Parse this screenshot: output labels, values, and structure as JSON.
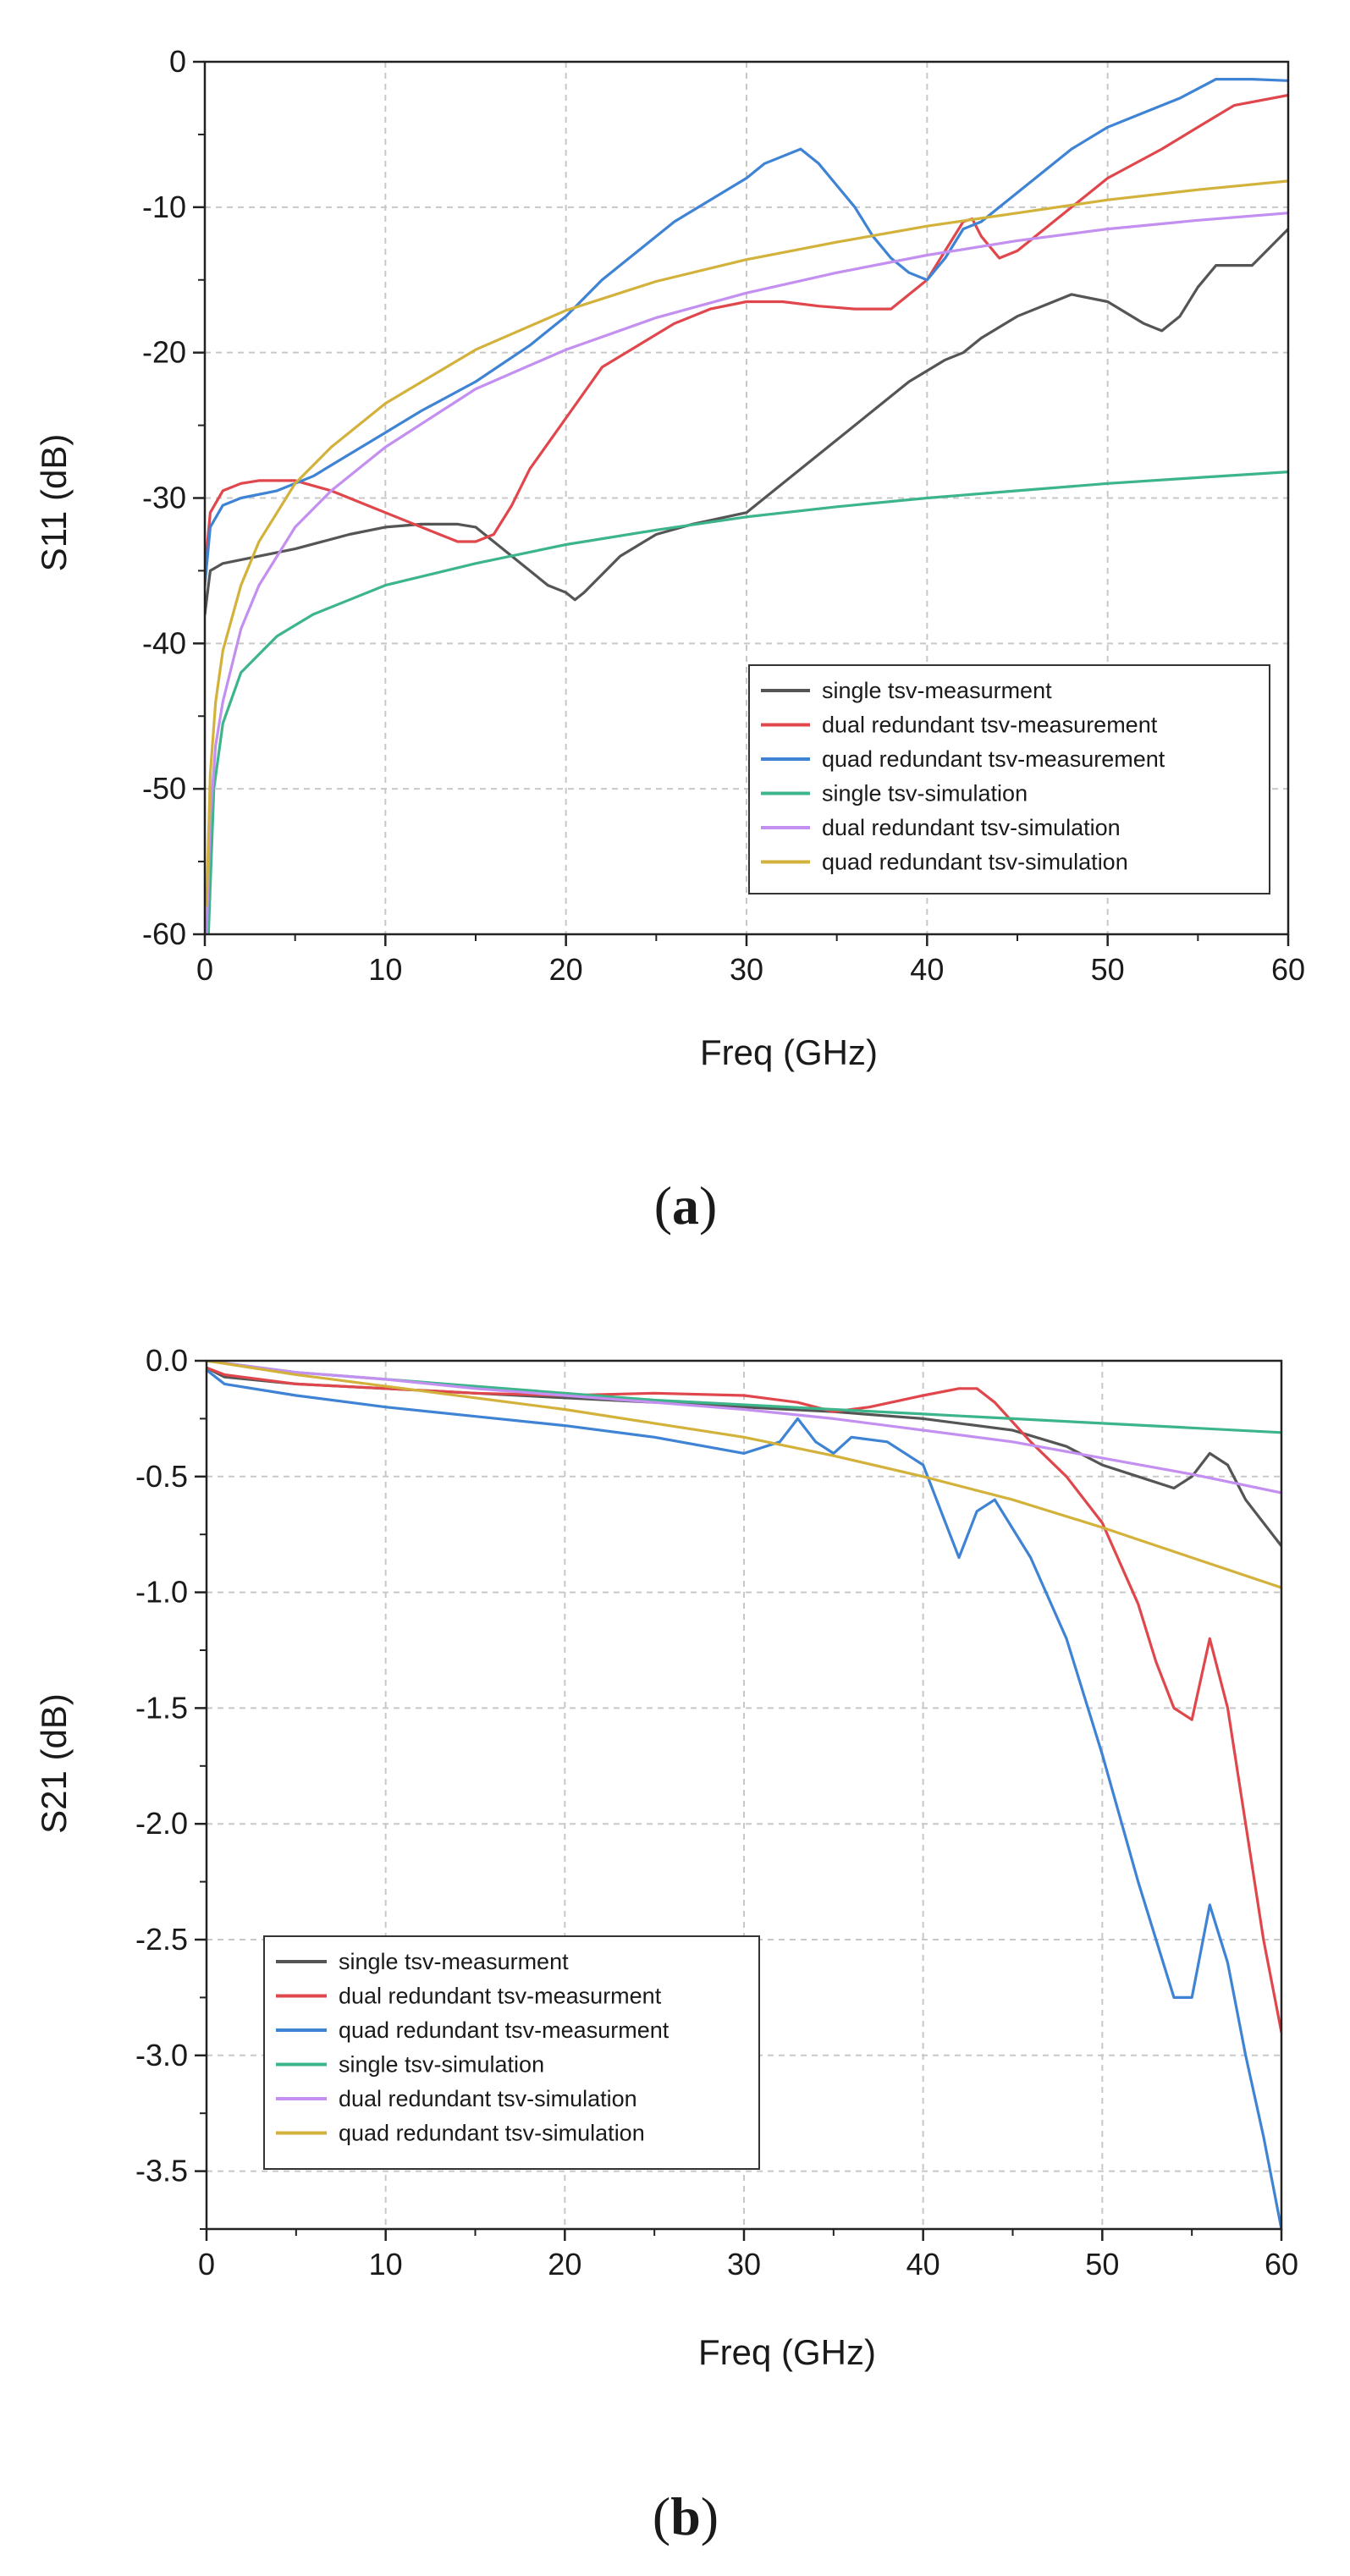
{
  "chart_data": [
    {
      "type": "line",
      "panel_label": "a",
      "title": "",
      "xlabel": "Freq (GHz)",
      "ylabel": "S11 (dB)",
      "xlim": [
        0,
        60
      ],
      "ylim": [
        -60,
        0
      ],
      "xticks": [
        0,
        10,
        20,
        30,
        40,
        50,
        60
      ],
      "yticks": [
        -60,
        -50,
        -40,
        -30,
        -20,
        -10,
        0
      ],
      "xtick_labels": [
        "0",
        "10",
        "20",
        "30",
        "40",
        "50",
        "60"
      ],
      "ytick_labels": [
        "-60",
        "-50",
        "-40",
        "-30",
        "-20",
        "-10",
        "0"
      ],
      "grid": true,
      "legend_position": "bottom-right",
      "series": [
        {
          "name": "single tsv-measurment",
          "color": "#555555",
          "x": [
            0,
            0.3,
            1,
            3,
            5,
            8,
            10,
            12,
            14,
            15,
            16,
            18,
            19,
            20,
            20.5,
            21,
            23,
            25,
            27,
            30,
            31,
            33,
            35,
            37,
            39,
            41,
            42,
            43,
            45,
            47,
            48,
            50,
            52,
            53,
            54,
            55,
            56,
            58,
            60
          ],
          "y": [
            -38,
            -35,
            -34.5,
            -34,
            -33.5,
            -32.5,
            -32,
            -31.8,
            -31.8,
            -32,
            -33,
            -35,
            -36,
            -36.5,
            -37,
            -36.5,
            -34,
            -32.5,
            -31.8,
            -31,
            -30,
            -28,
            -26,
            -24,
            -22,
            -20.5,
            -20,
            -19,
            -17.5,
            -16.5,
            -16,
            -16.5,
            -18,
            -18.5,
            -17.5,
            -15.5,
            -14,
            -14,
            -11.5
          ]
        },
        {
          "name": "dual redundant tsv-measurement",
          "color": "#e0474c",
          "x": [
            0,
            0.3,
            1,
            2,
            3,
            5,
            7,
            9,
            11,
            13,
            14,
            15,
            16,
            17,
            18,
            20,
            22,
            24,
            26,
            28,
            30,
            32,
            34,
            36,
            38,
            40,
            41,
            42,
            42.5,
            43,
            44,
            45,
            47,
            50,
            53,
            55,
            57,
            60
          ],
          "y": [
            -35,
            -31,
            -29.5,
            -29,
            -28.8,
            -28.8,
            -29.5,
            -30.5,
            -31.5,
            -32.5,
            -33,
            -33,
            -32.5,
            -30.5,
            -28,
            -24.5,
            -21,
            -19.5,
            -18,
            -17,
            -16.5,
            -16.5,
            -16.8,
            -17,
            -17,
            -15,
            -13,
            -11,
            -10.8,
            -12,
            -13.5,
            -13,
            -11,
            -8,
            -6,
            -4.5,
            -3,
            -2.3
          ]
        },
        {
          "name": "quad redundant tsv-measurement",
          "color": "#3f83d4",
          "x": [
            0,
            0.3,
            1,
            2,
            4,
            6,
            8,
            10,
            12,
            15,
            18,
            20,
            22,
            24,
            26,
            28,
            30,
            31,
            32,
            33,
            34,
            35,
            36,
            37,
            38,
            39,
            40,
            41,
            42,
            43,
            44,
            46,
            48,
            50,
            52,
            54,
            56,
            58,
            60
          ],
          "y": [
            -36,
            -32,
            -30.5,
            -30,
            -29.5,
            -28.5,
            -27,
            -25.5,
            -24,
            -22,
            -19.5,
            -17.5,
            -15,
            -13,
            -11,
            -9.5,
            -8,
            -7,
            -6.5,
            -6,
            -7,
            -8.5,
            -10,
            -12,
            -13.5,
            -14.5,
            -15,
            -13.5,
            -11.5,
            -11,
            -10,
            -8,
            -6,
            -4.5,
            -3.5,
            -2.5,
            -1.2,
            -1.2,
            -1.3
          ]
        },
        {
          "name": "single tsv-simulation",
          "color": "#3db58a",
          "x": [
            0.2,
            0.5,
            1,
            2,
            4,
            6,
            8,
            10,
            15,
            20,
            25,
            30,
            35,
            40,
            45,
            50,
            55,
            60
          ],
          "y": [
            -60,
            -50,
            -45.5,
            -42,
            -39.5,
            -38,
            -37,
            -36,
            -34.5,
            -33.2,
            -32.2,
            -31.3,
            -30.6,
            -30,
            -29.5,
            -29,
            -28.6,
            -28.2
          ]
        },
        {
          "name": "dual redundant tsv-simulation",
          "color": "#c38ff0",
          "x": [
            0.1,
            0.3,
            0.6,
            1,
            2,
            3,
            5,
            7,
            10,
            15,
            20,
            25,
            30,
            35,
            40,
            45,
            50,
            55,
            60
          ],
          "y": [
            -60,
            -52,
            -47,
            -44,
            -39,
            -36,
            -32,
            -29.5,
            -26.5,
            -22.5,
            -19.8,
            -17.6,
            -15.9,
            -14.5,
            -13.3,
            -12.3,
            -11.5,
            -10.9,
            -10.4
          ]
        },
        {
          "name": "quad redundant tsv-simulation",
          "color": "#d3b23c",
          "x": [
            0.1,
            0.3,
            0.6,
            1,
            2,
            3,
            5,
            7,
            10,
            15,
            20,
            25,
            30,
            35,
            40,
            45,
            50,
            55,
            60
          ],
          "y": [
            -58,
            -49,
            -44,
            -40.5,
            -36,
            -33,
            -29,
            -26.5,
            -23.5,
            -19.8,
            -17.1,
            -15.1,
            -13.6,
            -12.4,
            -11.3,
            -10.4,
            -9.5,
            -8.8,
            -8.2
          ]
        }
      ]
    },
    {
      "type": "line",
      "panel_label": "b",
      "title": "",
      "xlabel": "Freq (GHz)",
      "ylabel": "S21 (dB)",
      "xlim": [
        0,
        60
      ],
      "ylim": [
        -3.75,
        0
      ],
      "xticks": [
        0,
        10,
        20,
        30,
        40,
        50,
        60
      ],
      "yticks": [
        -3.5,
        -3.0,
        -2.5,
        -2.0,
        -1.5,
        -1.0,
        -0.5,
        0.0
      ],
      "xtick_labels": [
        "0",
        "10",
        "20",
        "30",
        "40",
        "50",
        "60"
      ],
      "ytick_labels": [
        "-3.5",
        "-3.0",
        "-2.5",
        "-2.0",
        "-1.5",
        "-1.0",
        "-0.5",
        "0.0"
      ],
      "grid": true,
      "legend_position": "bottom-left",
      "series": [
        {
          "name": "single tsv-measurment",
          "color": "#555555",
          "x": [
            0,
            1,
            5,
            10,
            15,
            20,
            25,
            30,
            35,
            40,
            45,
            48,
            50,
            52,
            54,
            55,
            56,
            57,
            58,
            59,
            60
          ],
          "y": [
            -0.03,
            -0.07,
            -0.1,
            -0.12,
            -0.14,
            -0.16,
            -0.18,
            -0.2,
            -0.22,
            -0.25,
            -0.3,
            -0.37,
            -0.45,
            -0.5,
            -0.55,
            -0.5,
            -0.4,
            -0.45,
            -0.6,
            -0.7,
            -0.8
          ]
        },
        {
          "name": "dual redundant tsv-measurment",
          "color": "#e0474c",
          "x": [
            0,
            1,
            5,
            10,
            15,
            20,
            25,
            30,
            33,
            35,
            37,
            40,
            42,
            43,
            44,
            46,
            48,
            50,
            52,
            53,
            54,
            55,
            56,
            57,
            58,
            59,
            60
          ],
          "y": [
            -0.03,
            -0.06,
            -0.1,
            -0.12,
            -0.14,
            -0.15,
            -0.14,
            -0.15,
            -0.18,
            -0.22,
            -0.2,
            -0.15,
            -0.12,
            -0.12,
            -0.18,
            -0.35,
            -0.5,
            -0.7,
            -1.05,
            -1.3,
            -1.5,
            -1.55,
            -1.2,
            -1.5,
            -2.0,
            -2.5,
            -2.9
          ]
        },
        {
          "name": "quad redundant tsv-measurment",
          "color": "#3f83d4",
          "x": [
            0,
            1,
            5,
            10,
            15,
            20,
            25,
            30,
            32,
            33,
            34,
            35,
            36,
            38,
            40,
            41,
            42,
            43,
            44,
            46,
            48,
            50,
            52,
            54,
            55,
            56,
            57,
            58,
            59,
            60
          ],
          "y": [
            -0.04,
            -0.1,
            -0.15,
            -0.2,
            -0.24,
            -0.28,
            -0.33,
            -0.4,
            -0.35,
            -0.25,
            -0.35,
            -0.4,
            -0.33,
            -0.35,
            -0.45,
            -0.65,
            -0.85,
            -0.65,
            -0.6,
            -0.85,
            -1.2,
            -1.7,
            -2.25,
            -2.75,
            -2.75,
            -2.35,
            -2.6,
            -3.0,
            -3.35,
            -3.75
          ]
        },
        {
          "name": "single tsv-simulation",
          "color": "#3db58a",
          "x": [
            0,
            5,
            10,
            15,
            20,
            25,
            30,
            35,
            40,
            45,
            50,
            55,
            60
          ],
          "y": [
            0,
            -0.05,
            -0.08,
            -0.11,
            -0.14,
            -0.17,
            -0.19,
            -0.21,
            -0.23,
            -0.25,
            -0.27,
            -0.29,
            -0.31
          ]
        },
        {
          "name": "dual redundant tsv-simulation",
          "color": "#c38ff0",
          "x": [
            0,
            5,
            10,
            15,
            20,
            25,
            30,
            35,
            40,
            45,
            50,
            55,
            60
          ],
          "y": [
            0,
            -0.05,
            -0.08,
            -0.12,
            -0.15,
            -0.18,
            -0.21,
            -0.25,
            -0.3,
            -0.35,
            -0.42,
            -0.49,
            -0.57
          ]
        },
        {
          "name": "quad redundant tsv-simulation",
          "color": "#d3b23c",
          "x": [
            0,
            5,
            10,
            15,
            20,
            25,
            30,
            35,
            40,
            45,
            50,
            55,
            60
          ],
          "y": [
            0,
            -0.06,
            -0.11,
            -0.16,
            -0.21,
            -0.27,
            -0.33,
            -0.41,
            -0.5,
            -0.6,
            -0.72,
            -0.85,
            -0.98
          ]
        }
      ]
    }
  ]
}
